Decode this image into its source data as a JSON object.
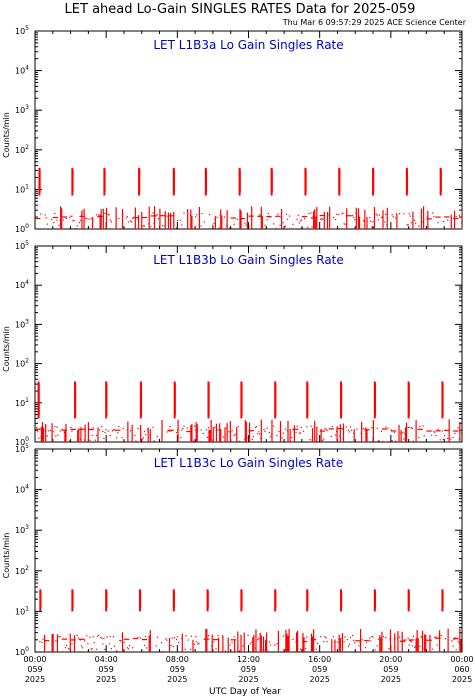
{
  "header": {
    "title": "LET ahead Lo-Gain SINGLES RATES Data for 2025-059",
    "timestamp": "Thu Mar  6 09:57:29 2025 ACE Science Center"
  },
  "colors": {
    "data": "#ff0000",
    "panel_title": "#0000cc",
    "axes": "#000000",
    "background": "#ffffff"
  },
  "chart_data": [
    {
      "type": "scatter",
      "title": "LET L1B3a Lo Gain Singles Rate",
      "xlabel": "UTC Day of Year",
      "ylabel": "Counts/min",
      "yscale": "log",
      "ylim": [
        1,
        100000
      ],
      "y_ticks": [
        1,
        10,
        100,
        1000,
        10000,
        100000
      ],
      "xlim_hours": [
        0,
        24
      ],
      "grid": false,
      "spike_hours": [
        0.25,
        2.1,
        3.9,
        5.85,
        7.8,
        9.6,
        11.5,
        13.3,
        15.2,
        17.1,
        19.0,
        20.9,
        22.8
      ],
      "spike_peak": 35,
      "spike_low": 7
    },
    {
      "type": "scatter",
      "title": "LET L1B3b Lo Gain Singles Rate",
      "xlabel": "UTC Day of Year",
      "ylabel": "Counts/min",
      "yscale": "log",
      "ylim": [
        1,
        100000
      ],
      "y_ticks": [
        1,
        10,
        100,
        1000,
        10000,
        100000
      ],
      "xlim_hours": [
        0,
        24
      ],
      "grid": false,
      "spike_hours": [
        0.2,
        2.25,
        4.0,
        5.95,
        7.85,
        9.75,
        11.6,
        13.5,
        15.3,
        17.2,
        19.1,
        21.0,
        22.9
      ],
      "spike_peak": 35,
      "spike_low": 4
    },
    {
      "type": "scatter",
      "title": "LET L1B3c Lo Gain Singles Rate",
      "xlabel": "UTC Day of Year",
      "ylabel": "Counts/min",
      "yscale": "log",
      "ylim": [
        1,
        100000
      ],
      "y_ticks": [
        1,
        10,
        100,
        1000,
        10000,
        100000
      ],
      "xlim_hours": [
        0,
        24
      ],
      "grid": false,
      "spike_hours": [
        0.3,
        2.1,
        4.0,
        5.9,
        7.8,
        9.7,
        11.6,
        13.5,
        15.3,
        17.2,
        19.1,
        21.0,
        22.9
      ],
      "spike_peak": 35,
      "spike_low": 10
    }
  ],
  "x_ticks": [
    {
      "time": "00:00",
      "doy": "059",
      "year": "2025"
    },
    {
      "time": "04:00",
      "doy": "059",
      "year": "2025"
    },
    {
      "time": "08:00",
      "doy": "059",
      "year": "2025"
    },
    {
      "time": "12:00",
      "doy": "059",
      "year": "2025"
    },
    {
      "time": "16:00",
      "doy": "059",
      "year": "2025"
    },
    {
      "time": "20:00",
      "doy": "059",
      "year": "2025"
    },
    {
      "time": "00:00",
      "doy": "060",
      "year": "2025"
    }
  ],
  "x_axis_title": "UTC Day of Year"
}
